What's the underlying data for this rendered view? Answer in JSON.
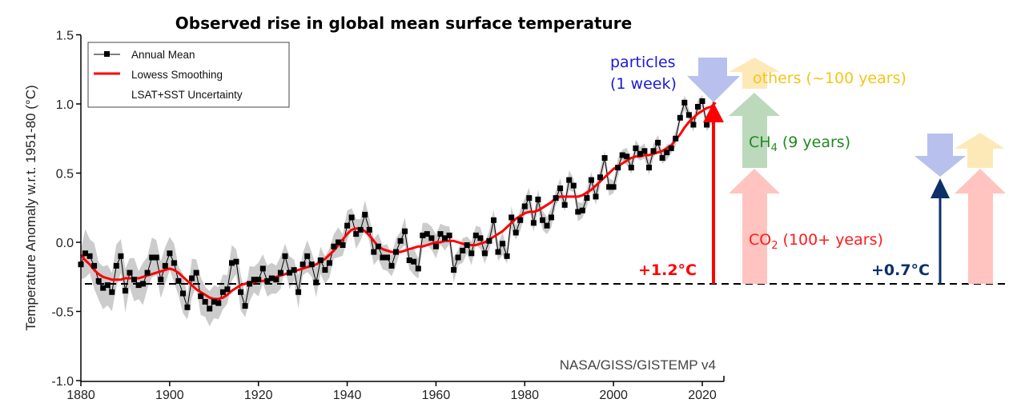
{
  "chart_data": {
    "type": "line",
    "title": "Observed rise in global mean surface temperature",
    "xlabel": "",
    "ylabel": "Temperature Anomaly w.r.t. 1951-80 (°C)",
    "xlim": [
      1880,
      2024
    ],
    "ylim": [
      -1.0,
      1.5
    ],
    "xticks": [
      "1880",
      "1900",
      "1920",
      "1940",
      "1960",
      "1980",
      "2000",
      "2020"
    ],
    "yticks": [
      "1.5",
      "1.0",
      "0.5",
      "0.0",
      "-0.5",
      "-1.0"
    ],
    "grid": false,
    "legend_position": "top-left",
    "legend": [
      "Annual Mean",
      "Lowess Smoothing",
      "LSAT+SST Uncertainty"
    ],
    "source_label": "NASA/GISS/GISTEMP v4",
    "baseline": -0.3,
    "x_start": 1880,
    "series": [
      {
        "name": "Annual Mean",
        "color": "#000000",
        "values": [
          -0.16,
          -0.08,
          -0.1,
          -0.17,
          -0.28,
          -0.33,
          -0.31,
          -0.36,
          -0.17,
          -0.1,
          -0.35,
          -0.22,
          -0.27,
          -0.31,
          -0.3,
          -0.22,
          -0.11,
          -0.11,
          -0.27,
          -0.17,
          -0.08,
          -0.15,
          -0.28,
          -0.37,
          -0.47,
          -0.26,
          -0.22,
          -0.39,
          -0.43,
          -0.48,
          -0.43,
          -0.44,
          -0.36,
          -0.34,
          -0.15,
          -0.14,
          -0.36,
          -0.46,
          -0.3,
          -0.27,
          -0.27,
          -0.19,
          -0.28,
          -0.26,
          -0.27,
          -0.22,
          -0.1,
          -0.22,
          -0.2,
          -0.36,
          -0.16,
          -0.1,
          -0.16,
          -0.29,
          -0.13,
          -0.2,
          -0.15,
          -0.03,
          0.0,
          -0.02,
          0.12,
          0.18,
          0.06,
          0.09,
          0.2,
          0.09,
          -0.07,
          -0.03,
          -0.11,
          -0.11,
          -0.17,
          -0.07,
          0.01,
          0.08,
          -0.13,
          -0.14,
          -0.19,
          0.05,
          0.06,
          0.03,
          -0.03,
          0.06,
          0.03,
          0.05,
          -0.2,
          -0.11,
          -0.06,
          -0.02,
          -0.08,
          0.05,
          0.03,
          -0.08,
          0.01,
          0.16,
          -0.07,
          -0.01,
          -0.1,
          0.18,
          0.07,
          0.16,
          0.26,
          0.32,
          0.14,
          0.31,
          0.16,
          0.12,
          0.18,
          0.32,
          0.39,
          0.27,
          0.45,
          0.41,
          0.22,
          0.23,
          0.32,
          0.45,
          0.33,
          0.47,
          0.61,
          0.4,
          0.4,
          0.54,
          0.63,
          0.62,
          0.54,
          0.68,
          0.64,
          0.66,
          0.54,
          0.66,
          0.72,
          0.61,
          0.65,
          0.68,
          0.75,
          0.9,
          1.01,
          0.92,
          0.85,
          0.98,
          1.02,
          0.85,
          0.89,
          1.17
        ]
      },
      {
        "name": "Lowess Smoothing",
        "color": "#ff0000",
        "values": [
          -0.09,
          -0.13,
          -0.16,
          -0.2,
          -0.23,
          -0.25,
          -0.26,
          -0.27,
          -0.27,
          -0.27,
          -0.26,
          -0.26,
          -0.26,
          -0.26,
          -0.25,
          -0.24,
          -0.23,
          -0.22,
          -0.21,
          -0.2,
          -0.19,
          -0.2,
          -0.22,
          -0.25,
          -0.28,
          -0.31,
          -0.34,
          -0.36,
          -0.38,
          -0.4,
          -0.41,
          -0.41,
          -0.4,
          -0.38,
          -0.35,
          -0.33,
          -0.31,
          -0.3,
          -0.29,
          -0.29,
          -0.28,
          -0.28,
          -0.27,
          -0.26,
          -0.25,
          -0.24,
          -0.23,
          -0.22,
          -0.21,
          -0.2,
          -0.19,
          -0.18,
          -0.17,
          -0.16,
          -0.14,
          -0.12,
          -0.09,
          -0.06,
          -0.02,
          0.02,
          0.06,
          0.09,
          0.1,
          0.1,
          0.08,
          0.05,
          0.01,
          -0.03,
          -0.05,
          -0.06,
          -0.07,
          -0.07,
          -0.07,
          -0.06,
          -0.05,
          -0.04,
          -0.03,
          -0.03,
          -0.02,
          -0.01,
          0.0,
          0.0,
          0.01,
          0.01,
          0.01,
          0.0,
          -0.01,
          -0.02,
          -0.02,
          -0.02,
          -0.01,
          0.0,
          0.02,
          0.04,
          0.06,
          0.08,
          0.11,
          0.14,
          0.17,
          0.19,
          0.21,
          0.22,
          0.22,
          0.23,
          0.25,
          0.27,
          0.29,
          0.32,
          0.33,
          0.33,
          0.33,
          0.33,
          0.33,
          0.34,
          0.36,
          0.38,
          0.41,
          0.44,
          0.47,
          0.5,
          0.53,
          0.55,
          0.57,
          0.59,
          0.61,
          0.62,
          0.62,
          0.63,
          0.63,
          0.64,
          0.65,
          0.66,
          0.68,
          0.7,
          0.74,
          0.78,
          0.83,
          0.87,
          0.9,
          0.93,
          0.95,
          0.97,
          0.98,
          1.01
        ]
      },
      {
        "name": "LSAT+SST Uncertainty",
        "color": "#cccccc",
        "half_width_start": 0.18,
        "half_width_end": 0.05
      }
    ],
    "annotations": [
      {
        "text": "particles",
        "color": "#1a1adb"
      },
      {
        "text": "(1 week)",
        "color": "#1a1adb"
      },
      {
        "text": "others (~100 years)",
        "color": "#f5c518"
      },
      {
        "text": "CH",
        "sub": "4",
        "rest": " (9 years)",
        "color": "#1f8a1f"
      },
      {
        "text": "CO",
        "sub": "2",
        "rest": " (100+ years)",
        "color": "#ff1a1a"
      },
      {
        "text": "+1.2°C",
        "color": "#ff0000"
      },
      {
        "text": "+0.7°C",
        "color": "#0d3069"
      }
    ],
    "forcing_arrows": {
      "observed": {
        "label": "+1.2°C",
        "value": 1.2,
        "color": "#ff0000"
      },
      "future": {
        "label": "+0.7°C",
        "value": 0.7,
        "color": "#0d3069"
      },
      "colors": {
        "particles": "#b8c0ee",
        "others": "#fde9b8",
        "ch4": "#bcd9bc",
        "co2": "#ffc4c0"
      }
    }
  }
}
